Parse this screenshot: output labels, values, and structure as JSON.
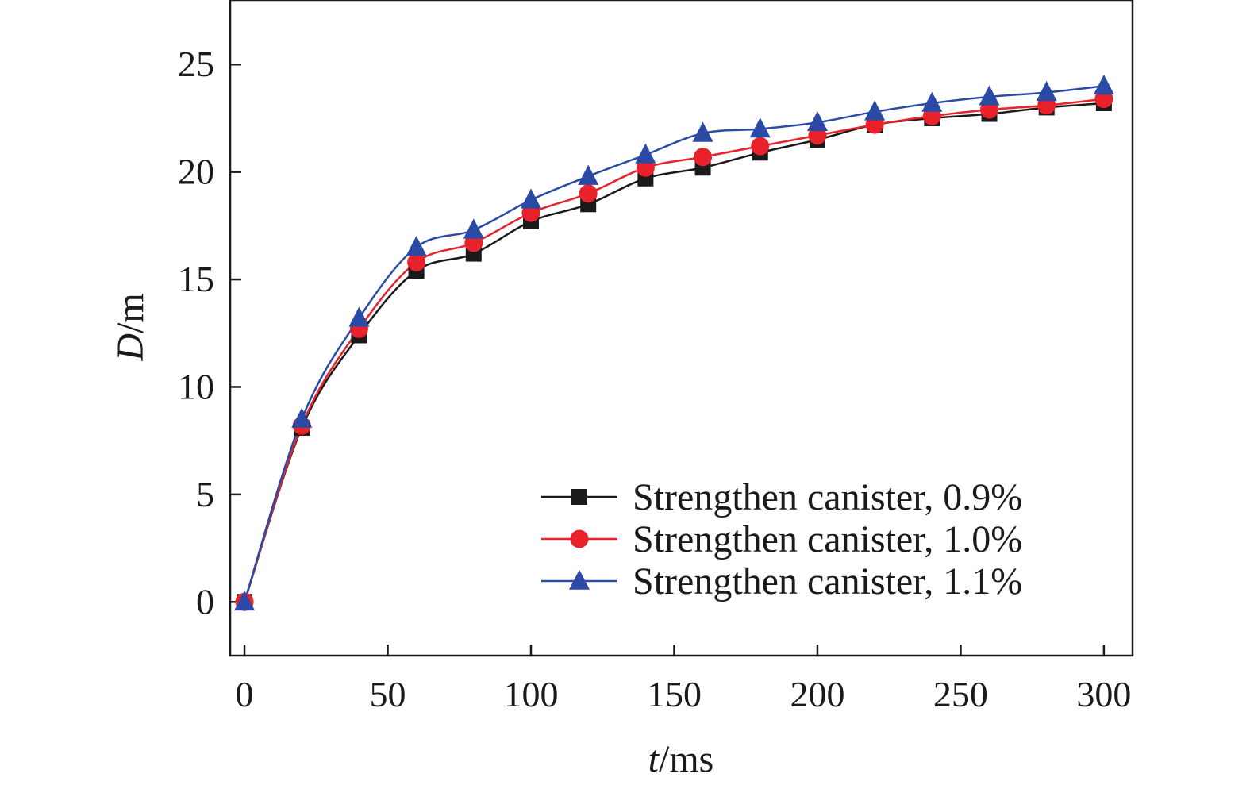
{
  "chart_data": {
    "type": "line",
    "xlabel_var": "t",
    "xlabel_unit": "/ms",
    "ylabel_var": "D",
    "ylabel_unit": "/m",
    "xlim": [
      -5,
      310
    ],
    "ylim": [
      -2.5,
      28
    ],
    "xticks": [
      0,
      50,
      100,
      150,
      200,
      250,
      300
    ],
    "yticks": [
      0,
      5,
      10,
      15,
      20,
      25
    ],
    "grid": false,
    "legend_position": "bottom-right",
    "x": [
      0,
      20,
      40,
      60,
      80,
      100,
      120,
      140,
      160,
      180,
      200,
      220,
      240,
      260,
      280,
      300
    ],
    "series": [
      {
        "name": "Strengthen canister, 0.9%",
        "color": "#1a1a1a",
        "marker": "square",
        "values": [
          0,
          8.1,
          12.4,
          15.4,
          16.2,
          17.7,
          18.5,
          19.7,
          20.2,
          20.9,
          21.5,
          22.2,
          22.5,
          22.7,
          23.0,
          23.2
        ]
      },
      {
        "name": "Strengthen canister, 1.0%",
        "color": "#e8212b",
        "marker": "circle",
        "values": [
          0,
          8.2,
          12.7,
          15.8,
          16.7,
          18.1,
          19.0,
          20.2,
          20.7,
          21.2,
          21.7,
          22.2,
          22.6,
          22.9,
          23.1,
          23.4
        ]
      },
      {
        "name": "Strengthen canister, 1.1%",
        "color": "#2a4aa6",
        "marker": "triangle",
        "values": [
          0,
          8.5,
          13.2,
          16.5,
          17.3,
          18.7,
          19.8,
          20.8,
          21.8,
          22.0,
          22.3,
          22.8,
          23.2,
          23.5,
          23.7,
          24.0
        ]
      }
    ]
  }
}
